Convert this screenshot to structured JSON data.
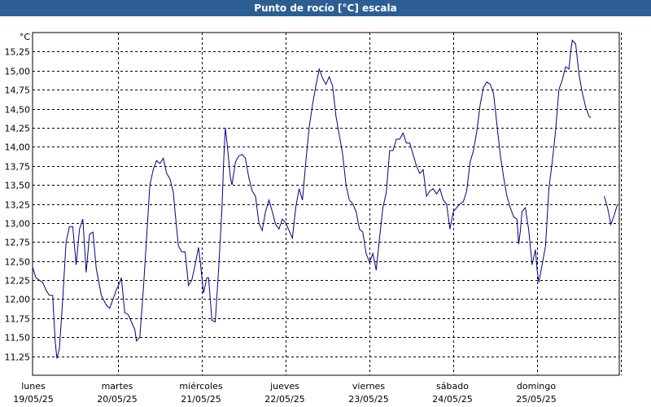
{
  "window": {
    "title": "Punto de rocío [°C] escala"
  },
  "chart_data": {
    "type": "line",
    "title": "Punto de rocío [°C] escala",
    "unit_label": "°C",
    "ylim": [
      11.0,
      15.5
    ],
    "yticks": [
      "11,25",
      "11,50",
      "11,75",
      "12,00",
      "12,25",
      "12,50",
      "12,75",
      "13,00",
      "13,25",
      "13,50",
      "13,75",
      "14,00",
      "14,25",
      "14,50",
      "14,75",
      "15,00",
      "15,25"
    ],
    "ytick_values": [
      11.25,
      11.5,
      11.75,
      12.0,
      12.25,
      12.5,
      12.75,
      13.0,
      13.25,
      13.5,
      13.75,
      14.0,
      14.25,
      14.5,
      14.75,
      15.0,
      15.25
    ],
    "days": [
      {
        "name": "lunes",
        "date": "19/05/25"
      },
      {
        "name": "martes",
        "date": "20/05/25"
      },
      {
        "name": "miércoles",
        "date": "21/05/25"
      },
      {
        "name": "jueves",
        "date": "22/05/25"
      },
      {
        "name": "viernes",
        "date": "23/05/25"
      },
      {
        "name": "sábado",
        "date": "24/05/25"
      },
      {
        "name": "domingo",
        "date": "25/05/25"
      }
    ],
    "grid": true,
    "series": [
      {
        "color": "#00008b",
        "points": [
          [
            0.0,
            12.42
          ],
          [
            0.04,
            12.28
          ],
          [
            0.08,
            12.25
          ],
          [
            0.12,
            12.22
          ],
          [
            0.16,
            12.12
          ],
          [
            0.2,
            12.05
          ],
          [
            0.24,
            12.05
          ],
          [
            0.27,
            11.45
          ],
          [
            0.29,
            11.22
          ],
          [
            0.32,
            11.35
          ],
          [
            0.36,
            12.0
          ],
          [
            0.4,
            12.75
          ],
          [
            0.44,
            12.95
          ],
          [
            0.48,
            12.95
          ],
          [
            0.52,
            12.45
          ],
          [
            0.56,
            12.92
          ],
          [
            0.6,
            13.05
          ],
          [
            0.64,
            12.35
          ],
          [
            0.68,
            12.85
          ],
          [
            0.72,
            12.88
          ],
          [
            0.76,
            12.4
          ],
          [
            0.82,
            12.05
          ],
          [
            0.88,
            11.92
          ],
          [
            0.92,
            11.88
          ],
          [
            0.96,
            12.0
          ],
          [
            1.0,
            12.12
          ],
          [
            1.04,
            12.22
          ],
          [
            1.06,
            12.28
          ],
          [
            1.08,
            12.05
          ],
          [
            1.1,
            11.82
          ],
          [
            1.14,
            11.8
          ],
          [
            1.18,
            11.7
          ],
          [
            1.22,
            11.6
          ],
          [
            1.24,
            11.45
          ],
          [
            1.28,
            11.5
          ],
          [
            1.32,
            12.1
          ],
          [
            1.36,
            12.8
          ],
          [
            1.4,
            13.5
          ],
          [
            1.44,
            13.7
          ],
          [
            1.48,
            13.82
          ],
          [
            1.52,
            13.78
          ],
          [
            1.56,
            13.85
          ],
          [
            1.6,
            13.65
          ],
          [
            1.64,
            13.58
          ],
          [
            1.68,
            13.4
          ],
          [
            1.7,
            13.15
          ],
          [
            1.74,
            12.7
          ],
          [
            1.78,
            12.62
          ],
          [
            1.82,
            12.62
          ],
          [
            1.86,
            12.18
          ],
          [
            1.9,
            12.25
          ],
          [
            1.94,
            12.45
          ],
          [
            1.98,
            12.68
          ],
          [
            2.0,
            12.5
          ],
          [
            2.04,
            12.08
          ],
          [
            2.08,
            12.28
          ],
          [
            2.1,
            12.28
          ],
          [
            2.14,
            11.72
          ],
          [
            2.18,
            11.7
          ],
          [
            2.22,
            12.4
          ],
          [
            2.26,
            13.2
          ],
          [
            2.28,
            13.8
          ],
          [
            2.3,
            14.25
          ],
          [
            2.32,
            14.05
          ],
          [
            2.36,
            13.6
          ],
          [
            2.38,
            13.5
          ],
          [
            2.42,
            13.8
          ],
          [
            2.46,
            13.88
          ],
          [
            2.5,
            13.9
          ],
          [
            2.54,
            13.85
          ],
          [
            2.58,
            13.6
          ],
          [
            2.62,
            13.42
          ],
          [
            2.66,
            13.35
          ],
          [
            2.7,
            13.0
          ],
          [
            2.74,
            12.9
          ],
          [
            2.78,
            13.15
          ],
          [
            2.82,
            13.3
          ],
          [
            2.86,
            13.15
          ],
          [
            2.9,
            12.98
          ],
          [
            2.94,
            12.92
          ],
          [
            2.98,
            13.05
          ],
          [
            3.02,
            13.0
          ],
          [
            3.06,
            12.9
          ],
          [
            3.1,
            12.8
          ],
          [
            3.14,
            13.2
          ],
          [
            3.18,
            13.45
          ],
          [
            3.22,
            13.3
          ],
          [
            3.26,
            13.8
          ],
          [
            3.3,
            14.25
          ],
          [
            3.34,
            14.55
          ],
          [
            3.38,
            14.8
          ],
          [
            3.42,
            15.02
          ],
          [
            3.46,
            14.9
          ],
          [
            3.5,
            14.82
          ],
          [
            3.54,
            14.92
          ],
          [
            3.58,
            14.8
          ],
          [
            3.62,
            14.4
          ],
          [
            3.66,
            14.15
          ],
          [
            3.7,
            13.9
          ],
          [
            3.74,
            13.5
          ],
          [
            3.78,
            13.3
          ],
          [
            3.82,
            13.25
          ],
          [
            3.86,
            13.15
          ],
          [
            3.9,
            12.92
          ],
          [
            3.94,
            12.88
          ],
          [
            3.98,
            12.6
          ],
          [
            4.02,
            12.48
          ],
          [
            4.06,
            12.6
          ],
          [
            4.1,
            12.38
          ],
          [
            4.14,
            12.8
          ],
          [
            4.18,
            13.2
          ],
          [
            4.22,
            13.4
          ],
          [
            4.26,
            13.95
          ],
          [
            4.3,
            13.95
          ],
          [
            4.34,
            14.1
          ],
          [
            4.38,
            14.1
          ],
          [
            4.42,
            14.18
          ],
          [
            4.46,
            14.05
          ],
          [
            4.5,
            14.05
          ],
          [
            4.54,
            13.9
          ],
          [
            4.58,
            13.75
          ],
          [
            4.62,
            13.65
          ],
          [
            4.66,
            13.7
          ],
          [
            4.7,
            13.35
          ],
          [
            4.74,
            13.42
          ],
          [
            4.78,
            13.45
          ],
          [
            4.82,
            13.38
          ],
          [
            4.86,
            13.45
          ],
          [
            4.9,
            13.3
          ],
          [
            4.94,
            13.25
          ],
          [
            4.98,
            12.92
          ],
          [
            5.02,
            13.15
          ],
          [
            5.06,
            13.2
          ],
          [
            5.1,
            13.25
          ],
          [
            5.14,
            13.28
          ],
          [
            5.18,
            13.42
          ],
          [
            5.22,
            13.8
          ],
          [
            5.26,
            13.95
          ],
          [
            5.3,
            14.2
          ],
          [
            5.34,
            14.55
          ],
          [
            5.38,
            14.78
          ],
          [
            5.42,
            14.85
          ],
          [
            5.46,
            14.82
          ],
          [
            5.5,
            14.7
          ],
          [
            5.54,
            14.3
          ],
          [
            5.58,
            13.9
          ],
          [
            5.62,
            13.6
          ],
          [
            5.66,
            13.35
          ],
          [
            5.7,
            13.2
          ],
          [
            5.74,
            13.08
          ],
          [
            5.78,
            13.05
          ],
          [
            5.8,
            12.72
          ],
          [
            5.82,
            12.9
          ],
          [
            5.84,
            13.15
          ],
          [
            5.88,
            13.2
          ],
          [
            5.92,
            12.9
          ],
          [
            5.96,
            12.45
          ],
          [
            6.0,
            12.65
          ],
          [
            6.02,
            12.38
          ],
          [
            6.04,
            12.22
          ],
          [
            6.08,
            12.45
          ],
          [
            6.12,
            12.7
          ],
          [
            6.16,
            13.45
          ],
          [
            6.2,
            13.8
          ],
          [
            6.24,
            14.2
          ],
          [
            6.28,
            14.75
          ],
          [
            6.32,
            14.88
          ],
          [
            6.36,
            15.05
          ],
          [
            6.4,
            15.02
          ],
          [
            6.42,
            15.25
          ],
          [
            6.44,
            15.4
          ],
          [
            6.48,
            15.35
          ],
          [
            6.52,
            14.95
          ],
          [
            6.56,
            14.7
          ],
          [
            6.6,
            14.52
          ],
          [
            6.64,
            14.4
          ],
          [
            6.66,
            14.38
          ],
          null,
          [
            6.82,
            13.35
          ],
          [
            6.86,
            13.2
          ],
          [
            6.9,
            12.98
          ],
          [
            6.94,
            13.1
          ],
          [
            6.98,
            13.25
          ]
        ]
      }
    ]
  }
}
